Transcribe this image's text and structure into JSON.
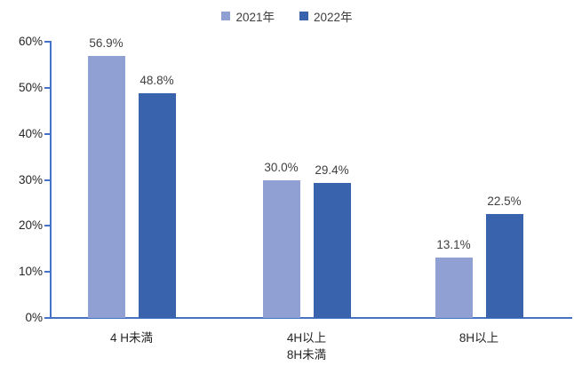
{
  "legend": {
    "items": [
      {
        "label": "2021年",
        "color": "#90A0D3"
      },
      {
        "label": "2022年",
        "color": "#3A63AD"
      }
    ]
  },
  "chart_data": {
    "type": "bar",
    "title": "",
    "xlabel": "",
    "ylabel": "",
    "categories": [
      "4 H未満",
      "4H以上\n8H未満",
      "8H以上"
    ],
    "series": [
      {
        "name": "2021年",
        "color": "#90A0D3",
        "values": [
          56.9,
          30.0,
          13.1
        ],
        "labels": [
          "56.9%",
          "30.0%",
          "13.1%"
        ]
      },
      {
        "name": "2022年",
        "color": "#3A63AD",
        "values": [
          48.8,
          29.4,
          22.5
        ],
        "labels": [
          "48.8%",
          "29.4%",
          "22.5%"
        ]
      }
    ],
    "yticks": [
      "0%",
      "10%",
      "20%",
      "30%",
      "40%",
      "50%",
      "60%"
    ],
    "ytick_values": [
      0,
      10,
      20,
      30,
      40,
      50,
      60
    ],
    "ylim": [
      0,
      60
    ],
    "grid": false,
    "legend_position": "top",
    "axis_color": "#4472C4",
    "data_label_color": "#404040"
  }
}
